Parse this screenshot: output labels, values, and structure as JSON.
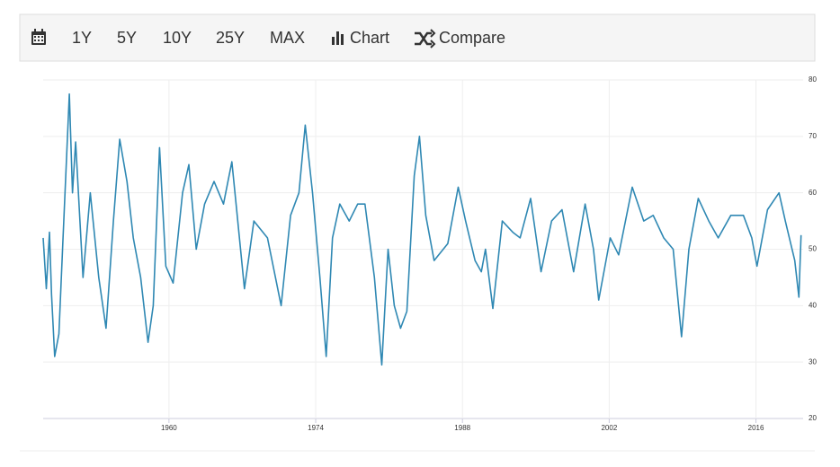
{
  "toolbar": {
    "buttons": [
      "1Y",
      "5Y",
      "10Y",
      "25Y",
      "MAX",
      "Chart",
      "Compare"
    ]
  },
  "chart_data": {
    "type": "line",
    "color": "#2f88b3",
    "grid": true,
    "x": [
      1948.0,
      1948.3,
      1948.6,
      1948.8,
      1949.1,
      1949.5,
      1949.9,
      1950.5,
      1950.8,
      1951.1,
      1951.8,
      1952.5,
      1953.3,
      1954.0,
      1954.7,
      1955.3,
      1956.0,
      1956.6,
      1957.3,
      1958.0,
      1958.5,
      1959.1,
      1959.7,
      1960.4,
      1961.3,
      1961.9,
      1962.6,
      1963.4,
      1964.3,
      1965.2,
      1966.0,
      1966.4,
      1967.2,
      1968.1,
      1969.4,
      1970.7,
      1971.6,
      1972.4,
      1973.0,
      1973.7,
      1974.4,
      1975.0,
      1975.6,
      1976.3,
      1977.2,
      1978.0,
      1978.7,
      1979.6,
      1980.3,
      1980.9,
      1981.5,
      1982.1,
      1982.7,
      1983.4,
      1983.9,
      1984.5,
      1985.3,
      1986.6,
      1987.6,
      1988.3,
      1989.2,
      1989.8,
      1990.2,
      1990.9,
      1991.8,
      1992.8,
      1993.5,
      1994.5,
      1995.5,
      1996.5,
      1997.5,
      1998.6,
      1999.7,
      2000.5,
      2001.0,
      2002.1,
      2002.9,
      2004.2,
      2005.3,
      2006.2,
      2007.2,
      2008.1,
      2008.9,
      2009.6,
      2010.5,
      2011.5,
      2012.4,
      2013.6,
      2014.8,
      2015.6,
      2016.1,
      2017.1,
      2018.2,
      2018.8,
      2019.7,
      2020.1,
      2020.3
    ],
    "values": [
      52,
      43,
      53,
      42,
      31,
      35,
      52,
      77.5,
      60,
      69,
      45,
      60,
      45,
      36,
      55,
      69.5,
      62,
      52,
      45,
      33.5,
      40,
      68,
      47,
      44,
      60,
      65,
      50,
      58,
      62,
      58,
      65.5,
      58,
      43,
      55,
      52,
      40,
      56,
      60,
      72,
      60,
      45,
      31,
      52,
      58,
      55,
      58,
      58,
      45,
      29.5,
      50,
      40,
      36,
      39,
      63,
      70,
      56,
      48,
      51,
      61,
      55,
      48,
      46,
      50,
      39.5,
      55,
      53,
      52,
      59,
      46,
      55,
      57,
      46,
      58,
      50,
      41,
      52,
      49,
      61,
      55,
      56,
      52,
      50,
      34.5,
      50,
      59,
      55,
      52,
      56,
      56,
      52,
      47,
      57,
      60,
      55,
      48,
      41.5,
      52.5
    ],
    "xlim": [
      1948,
      2020.5
    ],
    "xticks": [
      1960,
      1974,
      1988,
      2002,
      2016
    ],
    "ylim": [
      20,
      80
    ],
    "yticks": [
      20,
      30,
      40,
      50,
      60,
      70,
      80
    ]
  }
}
